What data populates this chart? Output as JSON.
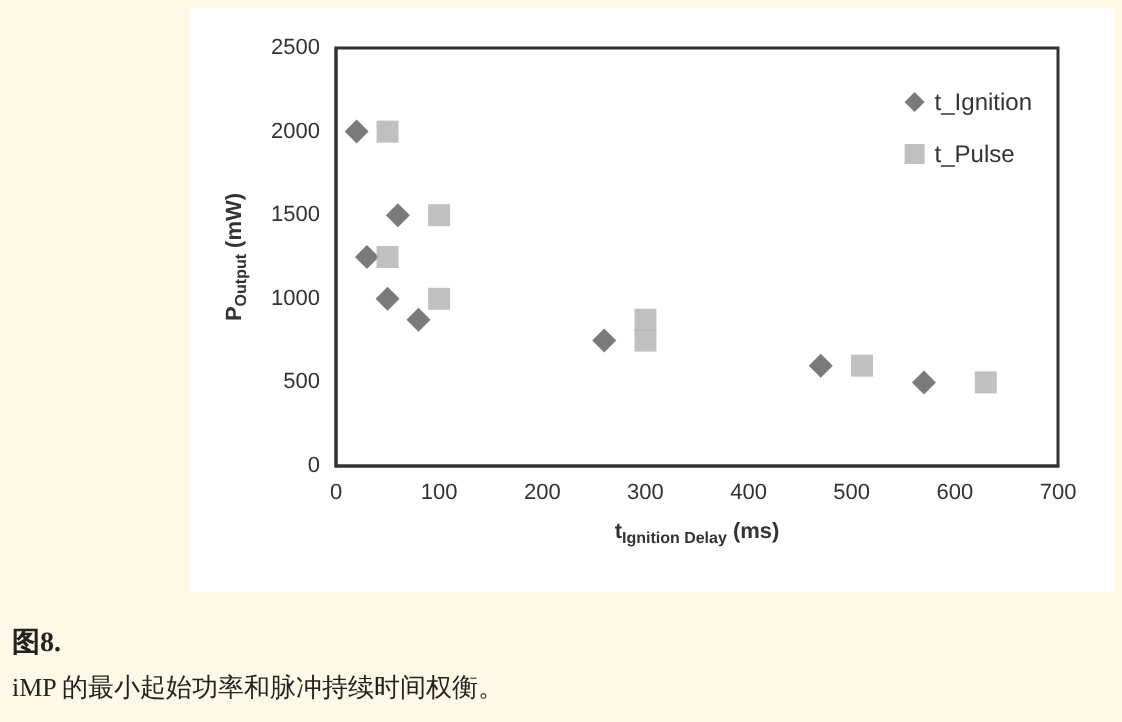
{
  "chart_data": {
    "type": "scatter",
    "xlabel": "t$_{Ignition Delay}$ (ms)",
    "ylabel": "P$_{Output}$ (mW)",
    "annotations": [
      "图8.",
      "iMP 的最小起始功率和脉冲持续时间权衡。"
    ],
    "series": [
      {
        "name": "t_Ignition",
        "color": "#595959",
        "marker": "diamond",
        "x": [
          20,
          60,
          30,
          50,
          80,
          260,
          470,
          570
        ],
        "values": [
          2000,
          1500,
          1250,
          1000,
          875,
          750,
          600,
          500
        ]
      },
      {
        "name": "t_Pulse",
        "color": "#b0b0b0",
        "marker": "square",
        "x": [
          50,
          100,
          50,
          100,
          300,
          300,
          510,
          630
        ],
        "values": [
          2000,
          1500,
          1250,
          1000,
          875,
          750,
          600,
          500
        ]
      }
    ],
    "xlim": [
      0,
      700
    ],
    "xticks": [
      0,
      100,
      200,
      300,
      400,
      500,
      600,
      700
    ],
    "ylim": [
      0,
      2500
    ],
    "yticks": [
      0,
      500,
      1000,
      1500,
      2000,
      2500
    ],
    "grid": false,
    "legend": "top right"
  }
}
